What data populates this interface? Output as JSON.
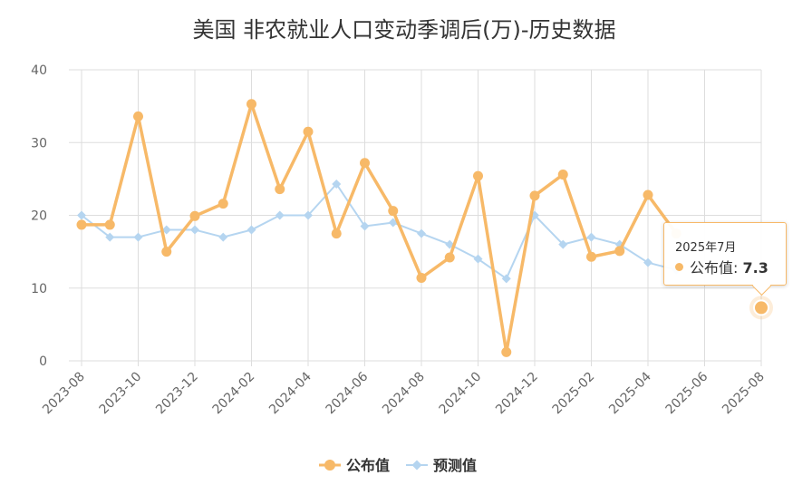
{
  "chart_data": {
    "type": "line",
    "title": "美国 非农就业人口变动季调后(万)-历史数据",
    "xlabel": "",
    "ylabel": "",
    "ylim": [
      0,
      40
    ],
    "yticks": [
      "0",
      "10",
      "20",
      "30",
      "40"
    ],
    "grid": true,
    "legend_position": "bottom-center",
    "x": [
      "2023-08",
      "2023-09",
      "2023-10",
      "2023-11",
      "2023-12",
      "2024-01",
      "2024-02",
      "2024-03",
      "2024-04",
      "2024-05",
      "2024-06",
      "2024-07",
      "2024-08",
      "2024-09",
      "2024-10",
      "2024-11",
      "2024-12",
      "2025-01",
      "2025-02",
      "2025-03",
      "2025-04",
      "2025-05",
      "2025-06",
      "2025-07",
      "2025-08"
    ],
    "x_tick_labels": [
      "2023-08",
      "2023-10",
      "2023-12",
      "2024-02",
      "2024-04",
      "2024-06",
      "2024-08",
      "2024-10",
      "2024-12",
      "2025-02",
      "2025-04",
      "2025-06",
      "2025-08"
    ],
    "series": [
      {
        "name": "公布值",
        "color": "#f7b968",
        "marker": "circle",
        "values": [
          18.7,
          18.7,
          33.6,
          15.0,
          19.9,
          21.6,
          35.3,
          23.6,
          31.5,
          17.5,
          27.2,
          20.6,
          11.4,
          14.2,
          25.4,
          1.2,
          22.7,
          25.6,
          14.3,
          15.1,
          22.8,
          17.5,
          null,
          null,
          7.3
        ]
      },
      {
        "name": "预测值",
        "color": "#b5d5f0",
        "marker": "diamond",
        "values": [
          20.0,
          17.0,
          17.0,
          18.0,
          18.0,
          17.0,
          18.0,
          20.0,
          20.0,
          24.3,
          18.5,
          19.0,
          17.5,
          16.0,
          14.0,
          11.3,
          20.0,
          16.0,
          17.0,
          16.0,
          13.5,
          12.5,
          null,
          null,
          null
        ]
      }
    ],
    "tooltip": {
      "date": "2025年7月",
      "series_name": "公布值",
      "value": "7.3"
    }
  }
}
